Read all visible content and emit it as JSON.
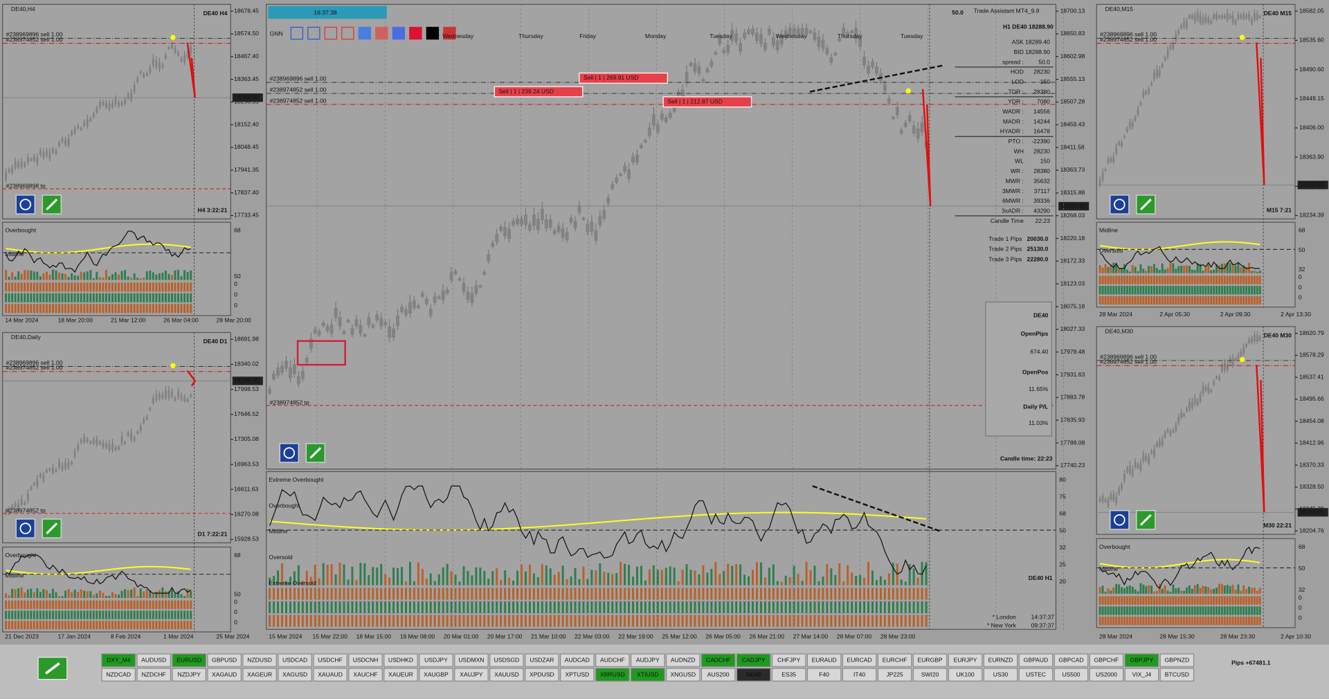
{
  "toolbar": {
    "gnn": "GNN",
    "time": "16:37:38",
    "spread_top": "50.0",
    "assistant": "Trade Assistant MT4_9.8"
  },
  "panels": [
    {
      "title": "DE40,H4",
      "label": "DE40 H4",
      "timer": "H4 3:22:21",
      "price": "18288.90",
      "yticks": [
        "18678.45",
        "18574.50",
        "18467.40",
        "18363.45",
        "18256.35",
        "18152.40",
        "18048.45",
        "17941.35",
        "17837.40",
        "17733.45"
      ],
      "dates": [
        "14 Mar 2024",
        "18 Mar 20:00",
        "21 Mar 12:00",
        "26 Mar 04:00",
        "28 Mar 20:00"
      ],
      "orders": [
        "#238969896 sell 1.00",
        "#238974852 sell 1.00"
      ],
      "tp": "#238969898 tp",
      "ind_labels": [
        "Overbought",
        "Midline"
      ],
      "ind_scale": [
        "68",
        "50"
      ],
      "strip": [
        "0",
        "0",
        "0"
      ]
    },
    {
      "title": "DE40,Daily",
      "label": "DE40 D1",
      "timer": "D1 7:22:21",
      "price": "18288.90",
      "yticks": [
        "18691.98",
        "18340.02",
        "17998.53",
        "17646.52",
        "17305.08",
        "16963.53",
        "16611.63",
        "16270.08",
        "15928.53"
      ],
      "dates": [
        "21 Dec 2023",
        "17 Jan 2024",
        "8 Feb 2024",
        "1 Mar 2024",
        "25 Mar 2024"
      ],
      "orders": [
        "#238969896 sell 1.00",
        "#238974852 sell 1.00"
      ],
      "tp": "#238974852 tp",
      "ind_labels": [
        "Overbought",
        "Midline"
      ],
      "ind_scale": [
        "68",
        "50"
      ],
      "strip": [
        "0",
        "0",
        "0"
      ]
    },
    {
      "title": "",
      "label": "DE40 H1",
      "timer": "Candle time:  22:23",
      "price": "18288.90",
      "yticks": [
        "18700.13",
        "18650.83",
        "18602.98",
        "18555.13",
        "18507.28",
        "18459.43",
        "18411.58",
        "18363.73",
        "18315.88",
        "18268.03",
        "18220.18",
        "18172.33",
        "18123.03",
        "18075.18",
        "18027.33",
        "17979.48",
        "17931.63",
        "17883.78",
        "17835.93",
        "17788.08",
        "17740.23"
      ],
      "dates": [
        "15 Mar 2024",
        "15 Mar 22:00",
        "18 Mar 15:00",
        "19 Mar 08:00",
        "20 Mar 01:00",
        "20 Mar 17:00",
        "21 Mar 10:00",
        "22 Mar 03:00",
        "22 Mar 19:00",
        "25 Mar 12:00",
        "26 Mar 05:00",
        "26 Mar 21:00",
        "27 Mar 14:00",
        "28 Mar 07:00",
        "28 Mar 23:00"
      ],
      "orders": [
        "#238969896 sell 1.00",
        "#238974852 sell 1.00",
        "#238974852 sell 1.00"
      ],
      "tp": "#238974852 tp",
      "ind_labels": [
        "Extreme Overbought",
        "Overbought",
        "Midline",
        "Oversold",
        "Extreme Oversold"
      ],
      "ind_scale": [
        "80",
        "75",
        "68",
        "50",
        "32",
        "25",
        "20"
      ],
      "strip": []
    },
    {
      "title": "DE40,M15",
      "label": "DE40 M15",
      "timer": "M15 7:21",
      "price": "18288.90",
      "yticks": [
        "18582.05",
        "18535.60",
        "18490.60",
        "18449.15",
        "18406.00",
        "18363.90",
        "18320.55",
        "18234.39"
      ],
      "dates": [
        "28 Mar 2024",
        "2 Apr 05:30",
        "2 Apr 09:30",
        "2 Apr 13:30"
      ],
      "orders": [
        "#238969896 sell 1.00",
        "#238974852 sell 1.00"
      ],
      "tp": "",
      "ind_labels": [
        "Midline",
        "Oversold"
      ],
      "ind_scale": [
        "68",
        "50",
        "32"
      ],
      "strip": [
        "0",
        "0",
        "0"
      ]
    },
    {
      "title": "DE40,M30",
      "label": "DE40 M30",
      "timer": "M30 22:21",
      "price": "18288.90",
      "yticks": [
        "18620.79",
        "18578.29",
        "18537.41",
        "18495.66",
        "18454.08",
        "18412.96",
        "18370.33",
        "18328.50",
        "18245.79",
        "18204.76"
      ],
      "dates": [
        "28 Mar 2024",
        "28 Mar 15:30",
        "28 Mar 23:30",
        "2 Apr 10:30"
      ],
      "orders": [
        "#238969896 sell 1.00",
        "#238974852 sell 1.00"
      ],
      "tp": "",
      "ind_labels": [
        "Overbought",
        "Midline"
      ],
      "ind_scale": [
        "68",
        "50",
        "32"
      ],
      "strip": [
        "0",
        "0",
        "0"
      ]
    }
  ],
  "h1": {
    "weekdays": [
      "Wednesday",
      "Thursday",
      "Friday",
      "Monday",
      "Tuesday",
      "Wednesday",
      "Thursday",
      "Tuesday"
    ],
    "sells": [
      "Sell | 1 | 269.91 USD",
      "Sell | 1 | 239.24 USD",
      "Sell | 1 | 212.87 USD"
    ],
    "info_title": "H1 DE40 18288.90",
    "info": [
      [
        "ASK",
        "18289.40"
      ],
      [
        "BID",
        "18288.90"
      ],
      [
        "spread :",
        "50.0"
      ],
      [
        "HOD",
        "28230"
      ],
      [
        "LOD",
        "-150"
      ],
      [
        "TDR :",
        "28380"
      ],
      [
        "YDR :",
        "7080"
      ],
      [
        "WADR :",
        "14556"
      ],
      [
        "MADR :",
        "14244"
      ],
      [
        "HYADR :",
        "16478"
      ],
      [
        "PTO :",
        "-22390"
      ],
      [
        "WH",
        "28230"
      ],
      [
        "WL",
        "150"
      ],
      [
        "WR :",
        "28380"
      ],
      [
        "MWR :",
        "35632"
      ],
      [
        "3MWR :",
        "37117"
      ],
      [
        "6MWR :",
        "39336"
      ],
      [
        "3xADR :",
        "43290"
      ],
      [
        "Candle Time",
        "22:23"
      ]
    ],
    "trades": [
      [
        "Trade 1 Pips",
        "20030.0"
      ],
      [
        "Trade 2 Pips",
        "25130.0"
      ],
      [
        "Trade 3 Pips",
        "22280.0"
      ]
    ],
    "box": {
      "symbol": "DE40",
      "open_pips_label": "OpenPips",
      "open_pips": "674.40",
      "open_pos_label": "OpenPos",
      "open_pos": "11.65%",
      "daily_label": "Daily P/L",
      "daily": "11.03%"
    },
    "sessions": [
      [
        "* London",
        "14:37:37"
      ],
      [
        "* New York",
        "09:37:37"
      ]
    ]
  },
  "symbols": [
    [
      {
        "name": "DXY_M4",
        "state": "green"
      },
      {
        "name": "AUDUSD",
        "state": "normal"
      },
      {
        "name": "EURUSD",
        "state": "green"
      },
      {
        "name": "GBPUSD",
        "state": "normal"
      },
      {
        "name": "NZDUSD",
        "state": "normal"
      },
      {
        "name": "USDCAD",
        "state": "normal"
      },
      {
        "name": "USDCHF",
        "state": "normal"
      },
      {
        "name": "USDCNH",
        "state": "normal"
      },
      {
        "name": "USDHKD",
        "state": "normal"
      },
      {
        "name": "USDJPY",
        "state": "normal"
      },
      {
        "name": "USDMXN",
        "state": "normal"
      },
      {
        "name": "USDSGD",
        "state": "normal"
      },
      {
        "name": "USDZAR",
        "state": "normal"
      },
      {
        "name": "AUDCAD",
        "state": "normal"
      },
      {
        "name": "AUDCHF",
        "state": "normal"
      },
      {
        "name": "AUDJPY",
        "state": "normal"
      },
      {
        "name": "AUDNZD",
        "state": "normal"
      },
      {
        "name": "CADCHF",
        "state": "green"
      },
      {
        "name": "CADJPY",
        "state": "green"
      },
      {
        "name": "CHFJPY",
        "state": "normal"
      },
      {
        "name": "EURAUD",
        "state": "normal"
      },
      {
        "name": "EURCAD",
        "state": "normal"
      },
      {
        "name": "EURCHF",
        "state": "normal"
      },
      {
        "name": "EURGBP",
        "state": "normal"
      },
      {
        "name": "EURJPY",
        "state": "normal"
      },
      {
        "name": "EURNZD",
        "state": "normal"
      },
      {
        "name": "GBPAUD",
        "state": "normal"
      },
      {
        "name": "GBPCAD",
        "state": "normal"
      },
      {
        "name": "GBPCHF",
        "state": "normal"
      },
      {
        "name": "GBPJPY",
        "state": "green"
      },
      {
        "name": "GBPNZD",
        "state": "normal"
      }
    ],
    [
      {
        "name": "NZDCAD",
        "state": "normal"
      },
      {
        "name": "NZDCHF",
        "state": "normal"
      },
      {
        "name": "NZDJPY",
        "state": "normal"
      },
      {
        "name": "XAGAUD",
        "state": "normal"
      },
      {
        "name": "XAGEUR",
        "state": "normal"
      },
      {
        "name": "XAGUSD",
        "state": "normal"
      },
      {
        "name": "XAUAUD",
        "state": "normal"
      },
      {
        "name": "XAUCHF",
        "state": "normal"
      },
      {
        "name": "XAUEUR",
        "state": "normal"
      },
      {
        "name": "XAUGBP",
        "state": "normal"
      },
      {
        "name": "XAUJPY",
        "state": "normal"
      },
      {
        "name": "XAUUSD",
        "state": "normal"
      },
      {
        "name": "XPDUSD",
        "state": "normal"
      },
      {
        "name": "XPTUSD",
        "state": "normal"
      },
      {
        "name": "XBRUSD",
        "state": "green"
      },
      {
        "name": "XTIUSD",
        "state": "green"
      },
      {
        "name": "XNGUSD",
        "state": "normal"
      },
      {
        "name": "AUS200",
        "state": "normal"
      },
      {
        "name": "DE40",
        "state": "selected"
      },
      {
        "name": "ES35",
        "state": "normal"
      },
      {
        "name": "F40",
        "state": "normal"
      },
      {
        "name": "IT40",
        "state": "normal"
      },
      {
        "name": "JP225",
        "state": "normal"
      },
      {
        "name": "SWI20",
        "state": "normal"
      },
      {
        "name": "UK100",
        "state": "normal"
      },
      {
        "name": "US30",
        "state": "normal"
      },
      {
        "name": "USTEC",
        "state": "normal"
      },
      {
        "name": "US500",
        "state": "normal"
      },
      {
        "name": "US2000",
        "state": "normal"
      },
      {
        "name": "VIX_J4",
        "state": "normal"
      },
      {
        "name": "BTCUSD",
        "state": "normal"
      }
    ]
  ],
  "pips": "Pips +67481.1"
}
